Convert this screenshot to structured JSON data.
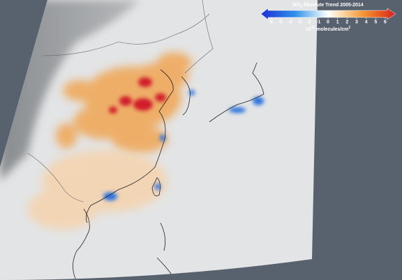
{
  "legend": {
    "title": {
      "prefix": "NO",
      "subscript": "2",
      "rest": " Absolute Trend 2005-2014"
    },
    "ticks": [
      -6,
      -5,
      -4,
      -3,
      -2,
      -1,
      0,
      1,
      2,
      3,
      4,
      5,
      6
    ],
    "unit": {
      "base": "10",
      "exponent": "15",
      "text": " molecules/cm",
      "unit_exponent": "2"
    }
  }
}
